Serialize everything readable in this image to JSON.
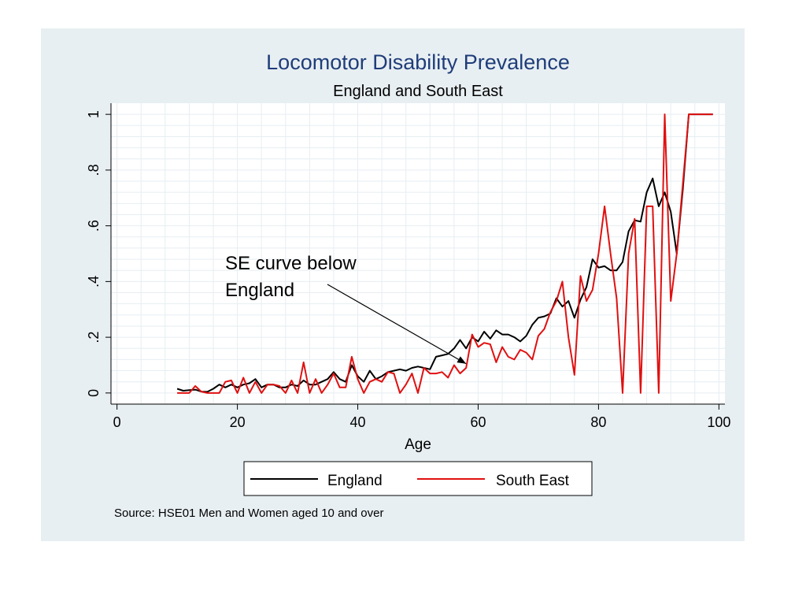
{
  "chart_data": {
    "type": "line",
    "title": "Locomotor Disability Prevalence",
    "subtitle": "England and South East",
    "xlabel": "Age",
    "ylabel": "",
    "xlim": [
      -1,
      101
    ],
    "ylim": [
      -0.04,
      1.04
    ],
    "x_ticks": [
      0,
      20,
      40,
      60,
      80,
      100
    ],
    "x_tick_labels": [
      "0",
      "20",
      "40",
      "60",
      "80",
      "100"
    ],
    "y_ticks": [
      0,
      0.2,
      0.4,
      0.6,
      0.8,
      1
    ],
    "y_tick_labels": [
      "0",
      ".2",
      ".4",
      ".6",
      ".8",
      "1"
    ],
    "grid": true,
    "legend_position": "bottom",
    "colors": {
      "England": "#000000",
      "South East": "#e01010",
      "plot_bg": "#ffffff",
      "panel_bg": "#e8eff2",
      "grid": "#e6eef2"
    },
    "annotation": {
      "lines": [
        "SE curve below",
        "England"
      ],
      "arrow_to": [
        58,
        0.105
      ]
    },
    "source": "Source: HSE01 Men and Women aged 10 and over",
    "x": [
      10,
      11,
      12,
      13,
      14,
      15,
      16,
      17,
      18,
      19,
      20,
      21,
      22,
      23,
      24,
      25,
      26,
      27,
      28,
      29,
      30,
      31,
      32,
      33,
      34,
      35,
      36,
      37,
      38,
      39,
      40,
      41,
      42,
      43,
      44,
      45,
      46,
      47,
      48,
      49,
      50,
      51,
      52,
      53,
      54,
      55,
      56,
      57,
      58,
      59,
      60,
      61,
      62,
      63,
      64,
      65,
      66,
      67,
      68,
      69,
      70,
      71,
      72,
      73,
      74,
      75,
      76,
      77,
      78,
      79,
      80,
      81,
      82,
      83,
      84,
      85,
      86,
      87,
      88,
      89,
      90,
      91,
      92,
      93,
      94,
      95,
      96,
      97,
      98,
      99
    ],
    "series": [
      {
        "name": "England",
        "values": [
          0.015,
          0.008,
          0.01,
          0.012,
          0.005,
          0.004,
          0.015,
          0.03,
          0.02,
          0.03,
          0.02,
          0.03,
          0.035,
          0.05,
          0.02,
          0.03,
          0.03,
          0.02,
          0.02,
          0.03,
          0.025,
          0.045,
          0.03,
          0.03,
          0.04,
          0.05,
          0.075,
          0.05,
          0.04,
          0.1,
          0.06,
          0.04,
          0.08,
          0.05,
          0.06,
          0.075,
          0.08,
          0.085,
          0.08,
          0.09,
          0.095,
          0.09,
          0.085,
          0.13,
          0.135,
          0.14,
          0.16,
          0.19,
          0.16,
          0.2,
          0.185,
          0.22,
          0.195,
          0.225,
          0.21,
          0.21,
          0.2,
          0.185,
          0.205,
          0.245,
          0.27,
          0.275,
          0.285,
          0.34,
          0.31,
          0.33,
          0.27,
          0.335,
          0.38,
          0.48,
          0.45,
          0.455,
          0.44,
          0.44,
          0.47,
          0.58,
          0.62,
          0.615,
          0.72,
          0.77,
          0.67,
          0.72,
          0.65,
          0.5,
          0.73,
          1.0,
          1.0,
          1.0,
          1.0,
          1.0
        ]
      },
      {
        "name": "South East",
        "values": [
          0.0,
          0.0,
          0.0,
          0.025,
          0.005,
          0.0,
          0.0,
          0.0,
          0.04,
          0.045,
          0.0,
          0.055,
          0.0,
          0.04,
          0.0,
          0.03,
          0.03,
          0.025,
          0.0,
          0.045,
          0.0,
          0.11,
          0.0,
          0.05,
          0.0,
          0.03,
          0.07,
          0.02,
          0.02,
          0.13,
          0.05,
          0.0,
          0.04,
          0.05,
          0.04,
          0.075,
          0.07,
          0.0,
          0.03,
          0.07,
          0.0,
          0.09,
          0.07,
          0.07,
          0.075,
          0.055,
          0.1,
          0.07,
          0.09,
          0.21,
          0.165,
          0.18,
          0.175,
          0.11,
          0.165,
          0.13,
          0.12,
          0.155,
          0.145,
          0.12,
          0.205,
          0.23,
          0.29,
          0.33,
          0.4,
          0.2,
          0.065,
          0.42,
          0.33,
          0.37,
          0.5,
          0.67,
          0.5,
          0.34,
          0.0,
          0.5,
          0.625,
          0.0,
          0.67,
          0.67,
          0.0,
          1.0,
          0.33,
          0.5,
          0.75,
          1.0,
          1.0,
          1.0,
          1.0,
          1.0
        ]
      }
    ]
  }
}
